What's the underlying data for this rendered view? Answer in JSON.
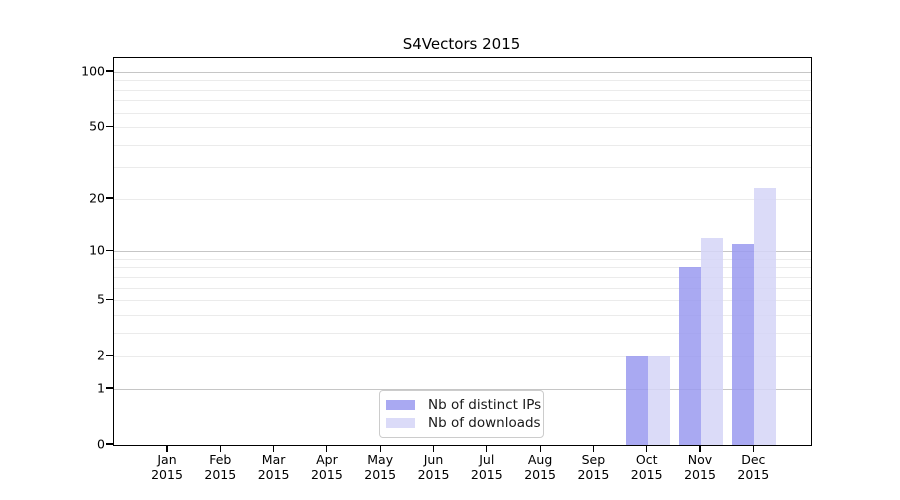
{
  "chart_data": {
    "type": "bar",
    "title": "S4Vectors 2015",
    "year": "2015",
    "categories": [
      "Jan",
      "Feb",
      "Mar",
      "Apr",
      "May",
      "Jun",
      "Jul",
      "Aug",
      "Sep",
      "Oct",
      "Nov",
      "Dec"
    ],
    "series": [
      {
        "name": "Nb of distinct IPs",
        "color": "#9a9af0",
        "values": [
          0,
          0,
          0,
          0,
          0,
          0,
          0,
          0,
          0,
          2,
          8,
          11
        ]
      },
      {
        "name": "Nb of downloads",
        "color": "#d5d5f7",
        "values": [
          0,
          0,
          0,
          0,
          0,
          0,
          0,
          0,
          0,
          2,
          12,
          23
        ]
      }
    ],
    "y_axis": {
      "scale": "log10(1+x)",
      "tick_labels": [
        100,
        50,
        20,
        10,
        5,
        2,
        1,
        0
      ],
      "minor_gridlines": [
        2,
        3,
        4,
        5,
        6,
        7,
        8,
        9,
        20,
        30,
        40,
        50,
        60,
        70,
        80,
        90
      ],
      "major_gridlines": [
        1,
        10,
        100
      ],
      "ylim": [
        0,
        119
      ]
    },
    "legend": {
      "position": "bottom-center"
    },
    "colors": {
      "grid_minor": "#ebebeb",
      "grid_major": "#c6c6c6",
      "spine": "#000000",
      "background": "#ffffff"
    }
  }
}
